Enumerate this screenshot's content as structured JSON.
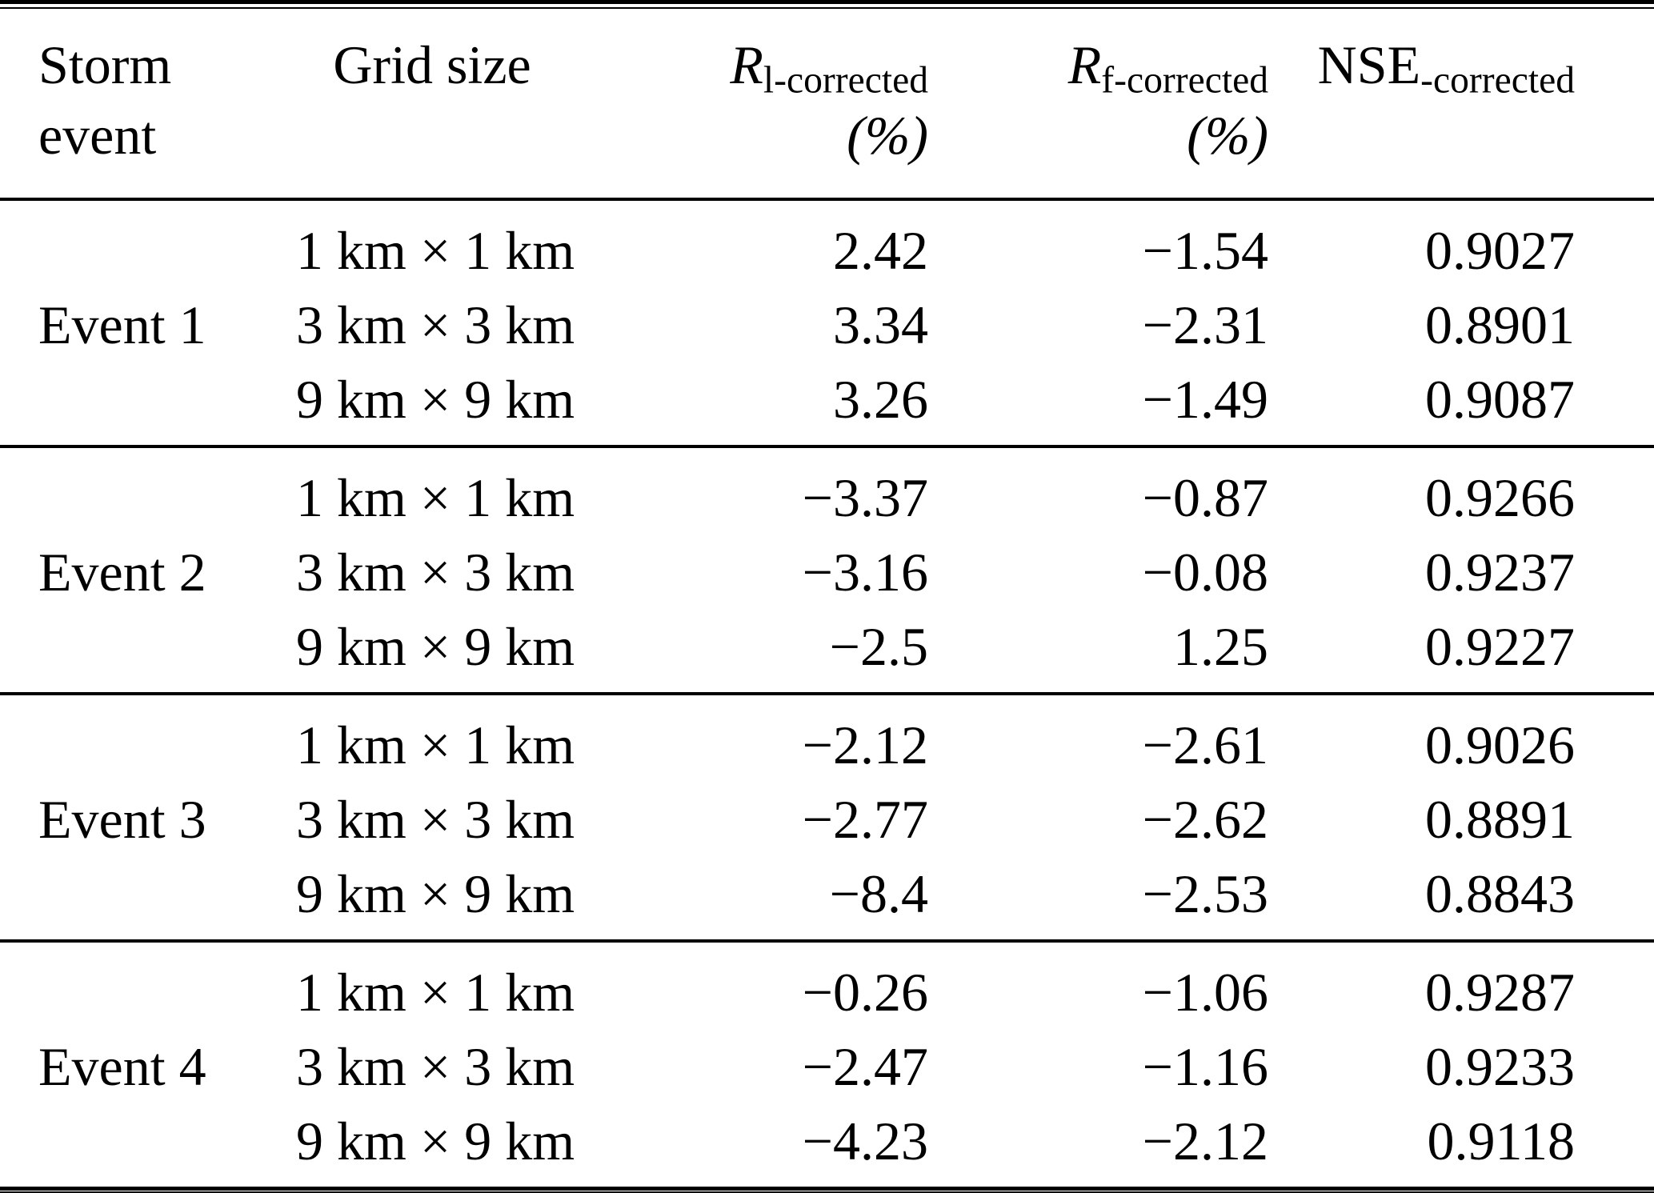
{
  "colors": {
    "text": "#000000",
    "background": "#ffffff",
    "rule": "#000000"
  },
  "table": {
    "headers": {
      "col1_line1": "Storm",
      "col1_line2": "event",
      "col2": "Grid size",
      "col3_symbol": "R",
      "col3_subscript": "l-corrected",
      "col3_unit": "(%)",
      "col4_symbol": "R",
      "col4_subscript": "f-corrected",
      "col4_unit": "(%)",
      "col5_base": "NSE",
      "col5_subscript": "-corrected"
    },
    "events": [
      {
        "label": "Event 1",
        "rows": [
          {
            "grid": "1 km × 1 km",
            "rl": "2.42",
            "rf": "−1.54",
            "nse": "0.9027"
          },
          {
            "grid": "3 km × 3 km",
            "rl": "3.34",
            "rf": "−2.31",
            "nse": "0.8901"
          },
          {
            "grid": "9 km × 9 km",
            "rl": "3.26",
            "rf": "−1.49",
            "nse": "0.9087"
          }
        ]
      },
      {
        "label": "Event 2",
        "rows": [
          {
            "grid": "1 km × 1 km",
            "rl": "−3.37",
            "rf": "−0.87",
            "nse": "0.9266"
          },
          {
            "grid": "3 km × 3 km",
            "rl": "−3.16",
            "rf": "−0.08",
            "nse": "0.9237"
          },
          {
            "grid": "9 km × 9 km",
            "rl": "−2.5",
            "rf": "1.25",
            "nse": "0.9227"
          }
        ]
      },
      {
        "label": "Event 3",
        "rows": [
          {
            "grid": "1 km × 1 km",
            "rl": "−2.12",
            "rf": "−2.61",
            "nse": "0.9026"
          },
          {
            "grid": "3 km × 3 km",
            "rl": "−2.77",
            "rf": "−2.62",
            "nse": "0.8891"
          },
          {
            "grid": "9 km × 9 km",
            "rl": "−8.4",
            "rf": "−2.53",
            "nse": "0.8843"
          }
        ]
      },
      {
        "label": "Event 4",
        "rows": [
          {
            "grid": "1 km × 1 km",
            "rl": "−0.26",
            "rf": "−1.06",
            "nse": "0.9287"
          },
          {
            "grid": "3 km × 3 km",
            "rl": "−2.47",
            "rf": "−1.16",
            "nse": "0.9233"
          },
          {
            "grid": "9 km × 9 km",
            "rl": "−4.23",
            "rf": "−2.12",
            "nse": "0.9118"
          }
        ]
      }
    ]
  }
}
